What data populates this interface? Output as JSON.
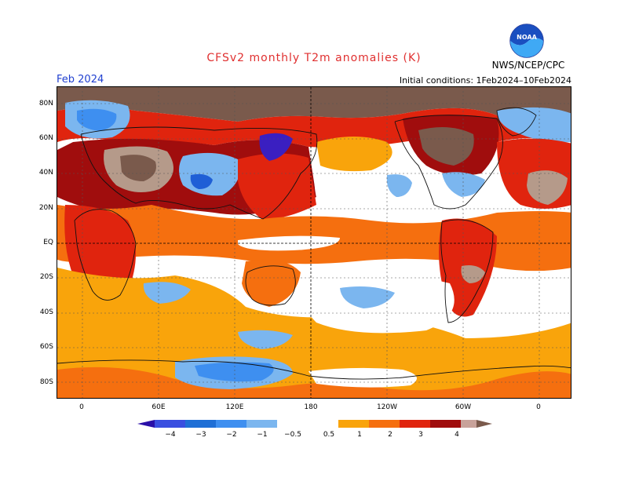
{
  "header": {
    "title": "CFSv2 monthly T2m anomalies (K)",
    "month": "Feb 2024",
    "initial_conditions": "Initial conditions: 1Feb2024–10Feb2024",
    "agency": "NWS/NCEP/CPC",
    "logo_text": "NOAA",
    "title_color": "#e03030",
    "month_color": "#2040d0"
  },
  "map": {
    "lat_labels": [
      "80N",
      "60N",
      "40N",
      "20N",
      "EQ",
      "20S",
      "40S",
      "60S",
      "80S"
    ],
    "lon_labels": [
      "0",
      "60E",
      "120E",
      "180",
      "120W",
      "60W",
      "0"
    ],
    "colors": {
      "white": "#ffffff",
      "lightorange": "#f9a40b",
      "orange": "#f56f0f",
      "red": "#e0240e",
      "darkred": "#a00d0d",
      "tan": "#b59a8a",
      "brown": "#7a5a4c",
      "lightblue": "#7bb6ef",
      "blue": "#3e8ff0",
      "midblue": "#1f5fd6",
      "darkblue": "#3a1fc1"
    }
  },
  "colorbar": {
    "labels": [
      "−4",
      "−3",
      "−2",
      "−1",
      "−0.5",
      "0.5",
      "1",
      "2",
      "3",
      "4"
    ],
    "colors": [
      "#2a0fa8",
      "#3a4fe0",
      "#1f6fd6",
      "#3e8ff0",
      "#7bb6ef",
      "#ffffff",
      "#f9a40b",
      "#f56f0f",
      "#e0240e",
      "#a00d0d",
      "#c8a29a",
      "#7a5a4c"
    ]
  }
}
